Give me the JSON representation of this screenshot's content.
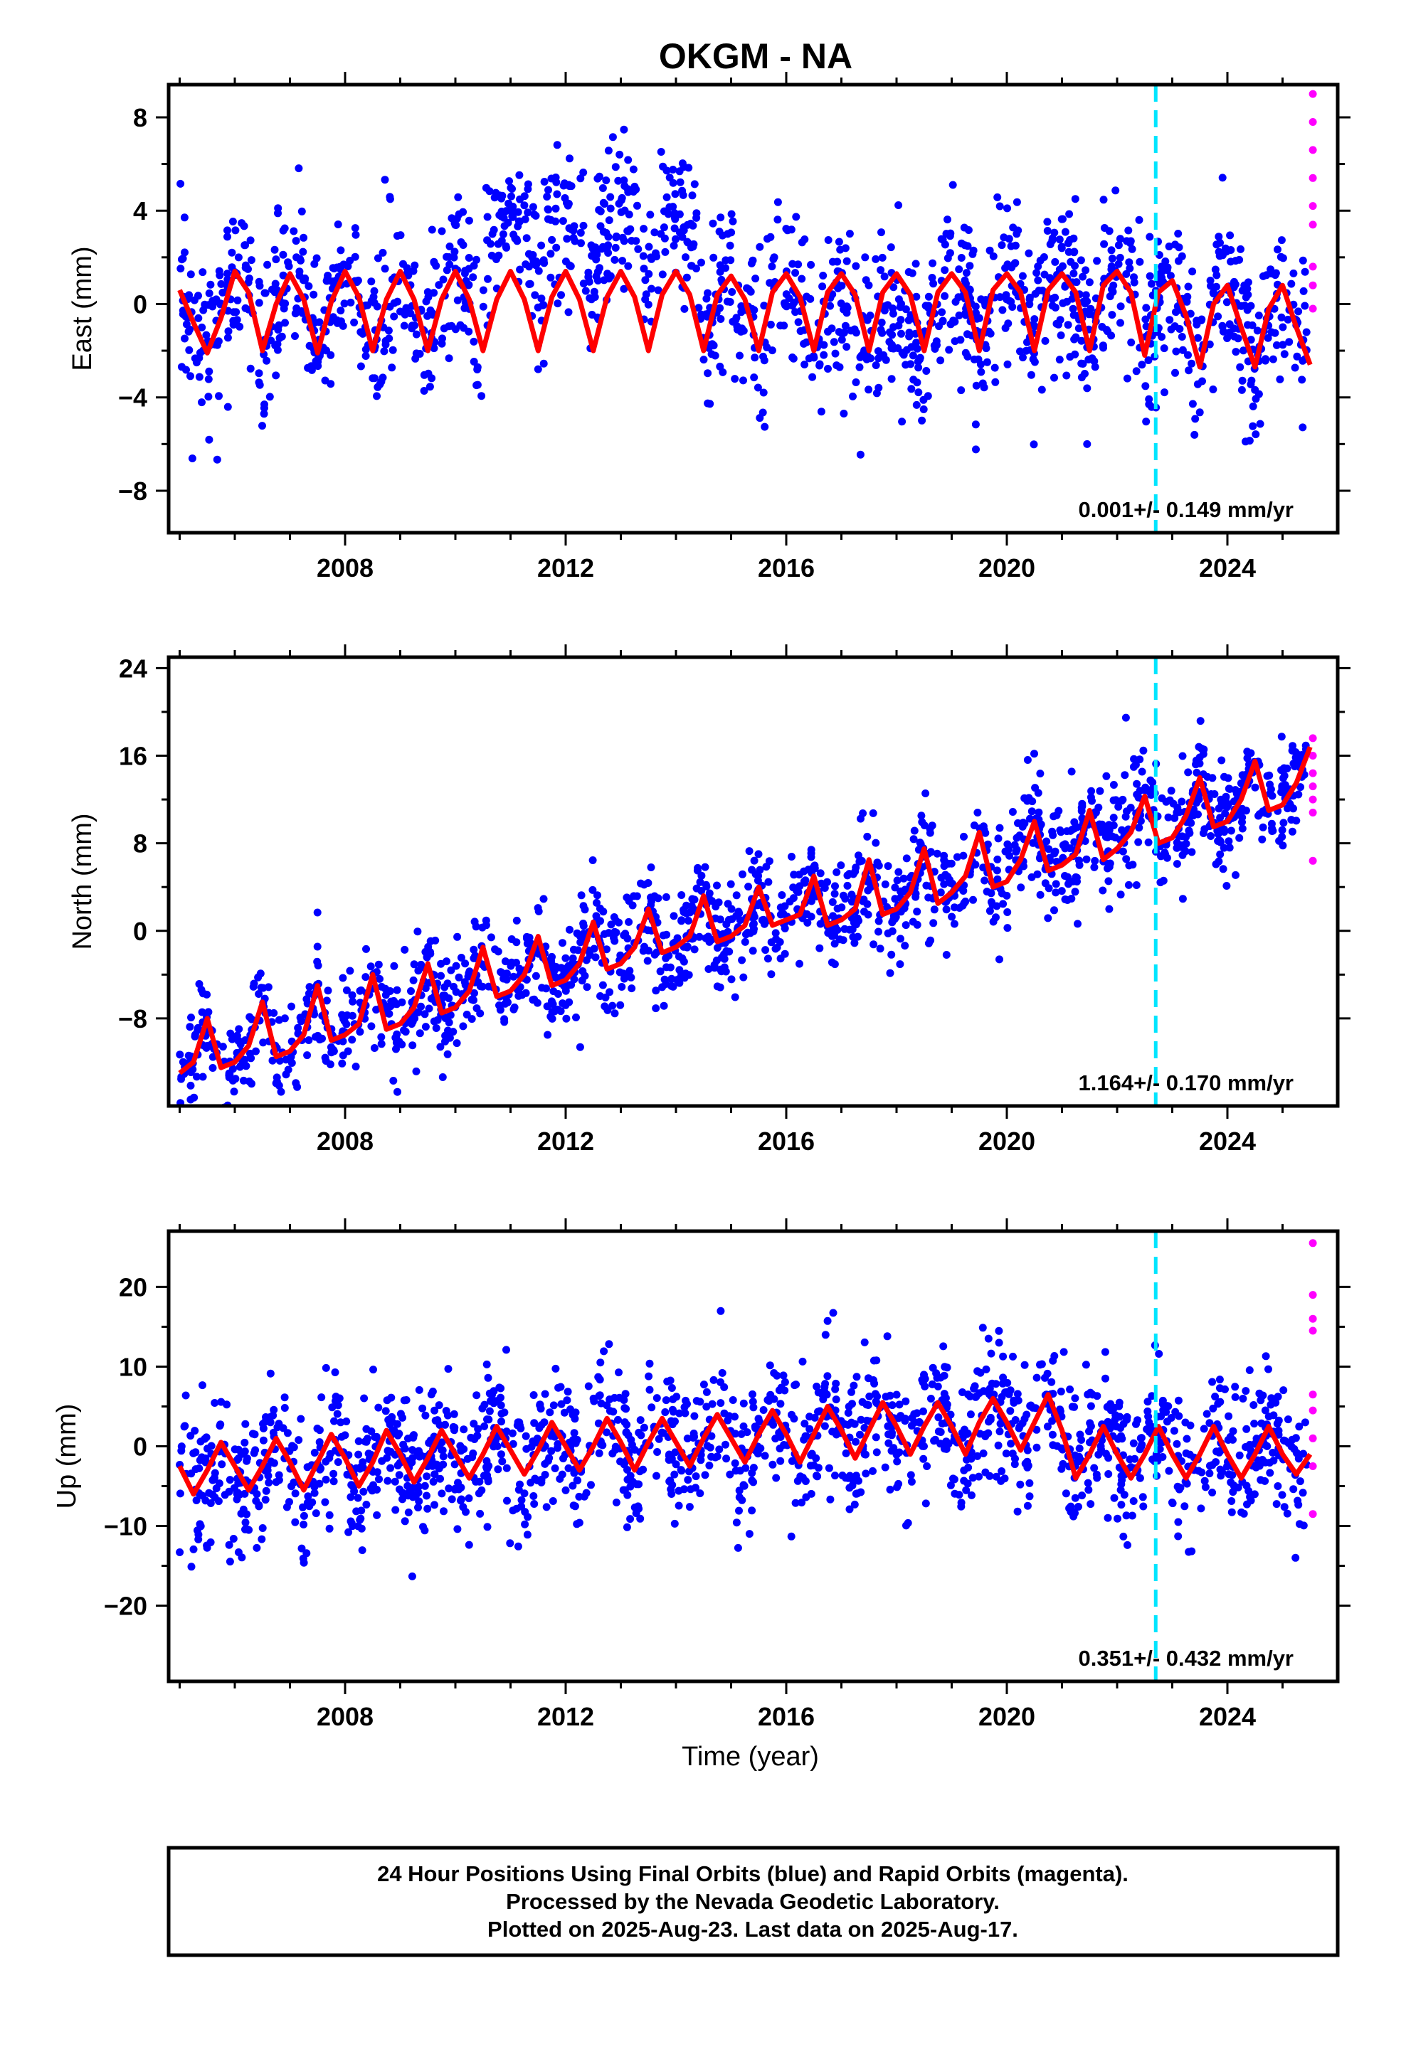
{
  "title": "OKGM - NA",
  "colors": {
    "final_orbits": "#0000ff",
    "rapid_orbits": "#ff00ff",
    "model": "#ff0000",
    "equipment_change": "#00e5ff"
  },
  "chart_data": [
    {
      "type": "scatter",
      "ylabel": "East (mm)",
      "xlim": [
        2004.8,
        2026.0
      ],
      "ylim": [
        -9.8,
        9.4
      ],
      "x_ticks": [
        2008,
        2012,
        2016,
        2020,
        2024
      ],
      "x_tick_labels": [
        "2008",
        "2012",
        "2016",
        "2020",
        "2024"
      ],
      "y_ticks": [
        -8,
        -4,
        0,
        4,
        8
      ],
      "y_tick_labels": [
        "−8",
        "−4",
        "0",
        "4",
        "8"
      ],
      "rate_label": "0.001+/- 0.149 mm/yr",
      "equipment_change_year": 2022.7,
      "series": [
        {
          "type": "scatter",
          "color": "#0000ff",
          "x_range": [
            2005.0,
            2025.45
          ]
        },
        {
          "type": "scatter",
          "color": "#ff00ff",
          "x": [
            2025.55,
            2025.55,
            2025.55,
            2025.55,
            2025.55,
            2025.55,
            2025.55,
            2025.55,
            2025.55
          ],
          "y": [
            9.0,
            7.8,
            6.6,
            5.4,
            4.2,
            3.4,
            1.6,
            0.8,
            -0.2
          ]
        },
        {
          "type": "line",
          "color": "#ff0000",
          "x": [
            2005.0,
            2005.25,
            2005.5,
            2005.75,
            2006.0,
            2006.25,
            2006.5,
            2006.75,
            2007.0,
            2007.25,
            2007.5,
            2007.75,
            2008.0,
            2008.25,
            2008.5,
            2008.75,
            2009.0,
            2009.25,
            2009.5,
            2009.75,
            2010.0,
            2010.25,
            2010.5,
            2010.75,
            2011.0,
            2011.25,
            2011.5,
            2011.75,
            2012.0,
            2012.25,
            2012.5,
            2012.75,
            2013.0,
            2013.25,
            2013.5,
            2013.75,
            2014.0,
            2014.25,
            2014.5,
            2014.75,
            2015.0,
            2015.25,
            2015.5,
            2015.75,
            2016.0,
            2016.25,
            2016.5,
            2016.75,
            2017.0,
            2017.25,
            2017.5,
            2017.75,
            2018.0,
            2018.25,
            2018.5,
            2018.75,
            2019.0,
            2019.25,
            2019.5,
            2019.75,
            2020.0,
            2020.25,
            2020.5,
            2020.75,
            2021.0,
            2021.25,
            2021.5,
            2021.75,
            2022.0,
            2022.25,
            2022.5,
            2022.75,
            2023.0,
            2023.25,
            2023.5,
            2023.75,
            2024.0,
            2024.25,
            2024.5,
            2024.75,
            2025.0,
            2025.25,
            2025.5
          ],
          "y": [
            0.6,
            -0.8,
            -2.1,
            -0.6,
            1.4,
            0.5,
            -2.0,
            0.0,
            1.3,
            0.2,
            -2.1,
            0.1,
            1.4,
            0.3,
            -2.0,
            0.2,
            1.4,
            0.2,
            -2.0,
            0.2,
            1.4,
            0.2,
            -2.0,
            0.2,
            1.4,
            0.2,
            -2.0,
            0.3,
            1.4,
            0.2,
            -2.0,
            0.3,
            1.4,
            0.3,
            -2.0,
            0.4,
            1.4,
            0.4,
            -2.0,
            0.4,
            1.2,
            0.2,
            -2.0,
            0.5,
            1.3,
            0.3,
            -2.0,
            0.5,
            1.3,
            0.4,
            -2.0,
            0.5,
            1.3,
            0.4,
            -2.0,
            0.5,
            1.3,
            0.5,
            -2.0,
            0.6,
            1.3,
            0.5,
            -2.0,
            0.6,
            1.3,
            0.5,
            -2.0,
            0.8,
            1.4,
            0.5,
            -2.2,
            0.5,
            1.0,
            -0.5,
            -2.7,
            0.0,
            0.8,
            -1.0,
            -2.7,
            -0.2,
            0.8,
            -1.0,
            -2.6
          ]
        }
      ]
    },
    {
      "type": "scatter",
      "ylabel": "North (mm)",
      "xlim": [
        2004.8,
        2026.0
      ],
      "ylim": [
        -16,
        25
      ],
      "x_ticks": [
        2008,
        2012,
        2016,
        2020,
        2024
      ],
      "x_tick_labels": [
        "2008",
        "2012",
        "2016",
        "2020",
        "2024"
      ],
      "y_ticks": [
        -8,
        0,
        8,
        16,
        24
      ],
      "y_tick_labels": [
        "−8",
        "0",
        "8",
        "16",
        "24"
      ],
      "rate_label": "1.164+/- 0.170 mm/yr",
      "equipment_change_year": 2022.7,
      "series": [
        {
          "type": "scatter",
          "color": "#0000ff",
          "x_range": [
            2005.0,
            2025.45
          ]
        },
        {
          "type": "scatter",
          "color": "#ff00ff",
          "x": [
            2025.55,
            2025.55,
            2025.55,
            2025.55,
            2025.55,
            2025.55,
            2025.55
          ],
          "y": [
            17.6,
            16.0,
            14.4,
            13.2,
            12.0,
            10.8,
            6.4
          ]
        },
        {
          "type": "line",
          "color": "#ff0000",
          "x": [
            2005.0,
            2005.25,
            2005.5,
            2005.75,
            2006.0,
            2006.25,
            2006.5,
            2006.75,
            2007.0,
            2007.25,
            2007.5,
            2007.75,
            2008.0,
            2008.25,
            2008.5,
            2008.75,
            2009.0,
            2009.25,
            2009.5,
            2009.75,
            2010.0,
            2010.25,
            2010.5,
            2010.75,
            2011.0,
            2011.25,
            2011.5,
            2011.75,
            2012.0,
            2012.25,
            2012.5,
            2012.75,
            2013.0,
            2013.25,
            2013.5,
            2013.75,
            2014.0,
            2014.25,
            2014.5,
            2014.75,
            2015.0,
            2015.25,
            2015.5,
            2015.75,
            2016.0,
            2016.25,
            2016.5,
            2016.75,
            2017.0,
            2017.25,
            2017.5,
            2017.75,
            2018.0,
            2018.25,
            2018.5,
            2018.75,
            2019.0,
            2019.25,
            2019.5,
            2019.75,
            2020.0,
            2020.25,
            2020.5,
            2020.75,
            2021.0,
            2021.25,
            2021.5,
            2021.75,
            2022.0,
            2022.25,
            2022.5,
            2022.75,
            2023.0,
            2023.25,
            2023.5,
            2023.75,
            2024.0,
            2024.25,
            2024.5,
            2024.75,
            2025.0,
            2025.25,
            2025.5
          ],
          "y": [
            -13.0,
            -12.0,
            -8.0,
            -12.5,
            -12.0,
            -10.5,
            -6.5,
            -11.5,
            -11.0,
            -9.5,
            -5.0,
            -10.0,
            -9.5,
            -8.5,
            -4.0,
            -9.0,
            -8.5,
            -7.0,
            -3.0,
            -7.5,
            -7.0,
            -5.5,
            -1.5,
            -6.0,
            -5.5,
            -4.0,
            -0.5,
            -5.0,
            -4.5,
            -3.0,
            0.8,
            -3.5,
            -3.0,
            -1.5,
            2.0,
            -2.0,
            -1.5,
            -0.5,
            3.2,
            -1.0,
            -0.5,
            0.5,
            4.0,
            0.5,
            1.0,
            1.5,
            5.0,
            0.5,
            1.0,
            2.0,
            6.5,
            1.5,
            2.0,
            3.5,
            7.5,
            2.5,
            3.5,
            5.0,
            9.0,
            4.0,
            4.5,
            6.5,
            10.0,
            5.5,
            6.0,
            7.0,
            11.0,
            6.5,
            7.5,
            9.0,
            12.3,
            8.0,
            8.5,
            10.5,
            14.0,
            9.5,
            10.0,
            12.0,
            15.5,
            11.0,
            11.5,
            13.5,
            16.8
          ]
        }
      ]
    },
    {
      "type": "scatter",
      "ylabel": "Up (mm)",
      "xlabel": "Time (year)",
      "xlim": [
        2004.8,
        2026.0
      ],
      "ylim": [
        -29.5,
        27
      ],
      "x_ticks": [
        2008,
        2012,
        2016,
        2020,
        2024
      ],
      "x_tick_labels": [
        "2008",
        "2012",
        "2016",
        "2020",
        "2024"
      ],
      "y_ticks": [
        -20,
        -10,
        0,
        10,
        20
      ],
      "y_tick_labels": [
        "−20",
        "−10",
        "0",
        "10",
        "20"
      ],
      "rate_label": "0.351+/- 0.432 mm/yr",
      "equipment_change_year": 2022.7,
      "series": [
        {
          "type": "scatter",
          "color": "#0000ff",
          "x_range": [
            2005.0,
            2025.45
          ]
        },
        {
          "type": "scatter",
          "color": "#ff00ff",
          "x": [
            2025.55,
            2025.55,
            2025.55,
            2025.55,
            2025.55,
            2025.55,
            2025.55,
            2025.55,
            2025.55
          ],
          "y": [
            25.5,
            19.0,
            16.0,
            14.5,
            6.5,
            4.5,
            1.0,
            -2.5,
            -8.5
          ]
        },
        {
          "type": "line",
          "color": "#ff0000",
          "x": [
            2005.0,
            2005.25,
            2005.5,
            2005.75,
            2006.0,
            2006.25,
            2006.5,
            2006.75,
            2007.0,
            2007.25,
            2007.5,
            2007.75,
            2008.0,
            2008.25,
            2008.5,
            2008.75,
            2009.0,
            2009.25,
            2009.5,
            2009.75,
            2010.0,
            2010.25,
            2010.5,
            2010.75,
            2011.0,
            2011.25,
            2011.5,
            2011.75,
            2012.0,
            2012.25,
            2012.5,
            2012.75,
            2013.0,
            2013.25,
            2013.5,
            2013.75,
            2014.0,
            2014.25,
            2014.5,
            2014.75,
            2015.0,
            2015.25,
            2015.5,
            2015.75,
            2016.0,
            2016.25,
            2016.5,
            2016.75,
            2017.0,
            2017.25,
            2017.5,
            2017.75,
            2018.0,
            2018.25,
            2018.5,
            2018.75,
            2019.0,
            2019.25,
            2019.5,
            2019.75,
            2020.0,
            2020.25,
            2020.5,
            2020.75,
            2021.0,
            2021.25,
            2021.5,
            2021.75,
            2022.0,
            2022.25,
            2022.5,
            2022.75,
            2023.0,
            2023.25,
            2023.5,
            2023.75,
            2024.0,
            2024.25,
            2024.5,
            2024.75,
            2025.0,
            2025.25,
            2025.5
          ],
          "y": [
            -2.5,
            -6.0,
            -3.0,
            0.5,
            -2.5,
            -5.5,
            -2.5,
            1.0,
            -2.0,
            -5.5,
            -2.0,
            1.5,
            -1.5,
            -5.0,
            -2.0,
            2.0,
            -1.0,
            -4.5,
            -1.5,
            2.0,
            -1.0,
            -4.0,
            -1.0,
            2.5,
            -0.5,
            -3.5,
            -0.5,
            3.0,
            0.0,
            -3.0,
            0.0,
            3.5,
            0.5,
            -3.0,
            0.5,
            3.5,
            0.5,
            -2.5,
            1.0,
            4.0,
            1.0,
            -2.0,
            1.5,
            4.5,
            1.5,
            -2.0,
            1.5,
            5.0,
            2.0,
            -1.5,
            2.0,
            5.5,
            2.5,
            -1.0,
            2.5,
            5.5,
            2.5,
            -1.0,
            3.0,
            6.0,
            3.0,
            -0.5,
            3.0,
            6.5,
            2.0,
            -4.0,
            -1.0,
            2.5,
            -1.0,
            -4.0,
            -1.0,
            2.5,
            -1.0,
            -4.0,
            -1.0,
            2.5,
            -1.0,
            -4.0,
            -1.0,
            2.5,
            -1.0,
            -3.5,
            -1.0
          ]
        }
      ]
    }
  ],
  "footer": {
    "line1": "24 Hour Positions Using Final Orbits (blue) and Rapid Orbits (magenta).",
    "line2": "Processed by the Nevada Geodetic Laboratory.",
    "line3": "Plotted on 2025-Aug-23. Last data on 2025-Aug-17."
  }
}
